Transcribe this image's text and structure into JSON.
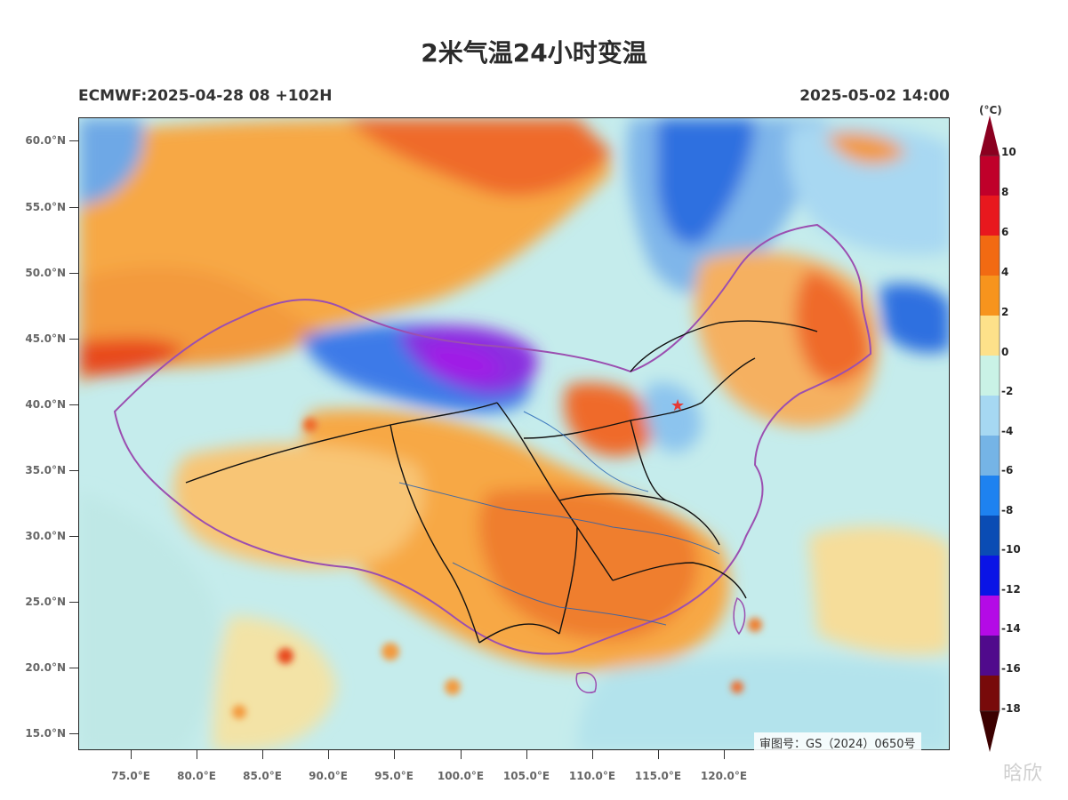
{
  "header": {
    "title": "2米气温24小时变温",
    "model_run": "ECMWF:2025-04-28 08 +102H",
    "valid_time": "2025-05-02 14:00"
  },
  "map": {
    "lat_labels": [
      "60.0°N",
      "55.0°N",
      "50.0°N",
      "45.0°N",
      "40.0°N",
      "35.0°N",
      "30.0°N",
      "25.0°N",
      "20.0°N",
      "15.0°N"
    ],
    "lon_labels": [
      "75.0°E",
      "80.0°E",
      "85.0°E",
      "90.0°E",
      "95.0°E",
      "100.0°E",
      "105.0°E",
      "110.0°E",
      "115.0°E",
      "120.0°E"
    ],
    "review_number": "审图号：GS（2024）0650号",
    "marker_icon": "star-icon",
    "marker_color": "#e53935"
  },
  "colorbar": {
    "unit": "(°C)",
    "labels": [
      "10",
      "8",
      "6",
      "4",
      "2",
      "0",
      "-2",
      "-4",
      "-6",
      "-8",
      "-10",
      "-12",
      "-14",
      "-16",
      "-18"
    ],
    "colors_top_to_bottom": [
      "#8b0020",
      "#c0002a",
      "#e8181e",
      "#f26a12",
      "#f7941d",
      "#fde18a",
      "#c9f2e6",
      "#a6d8f2",
      "#75b4e6",
      "#1e82f0",
      "#0a4cb4",
      "#0a14e6",
      "#b40ae6",
      "#500a8c",
      "#780a0a",
      "#3c0000"
    ]
  },
  "watermark": "晗欣"
}
